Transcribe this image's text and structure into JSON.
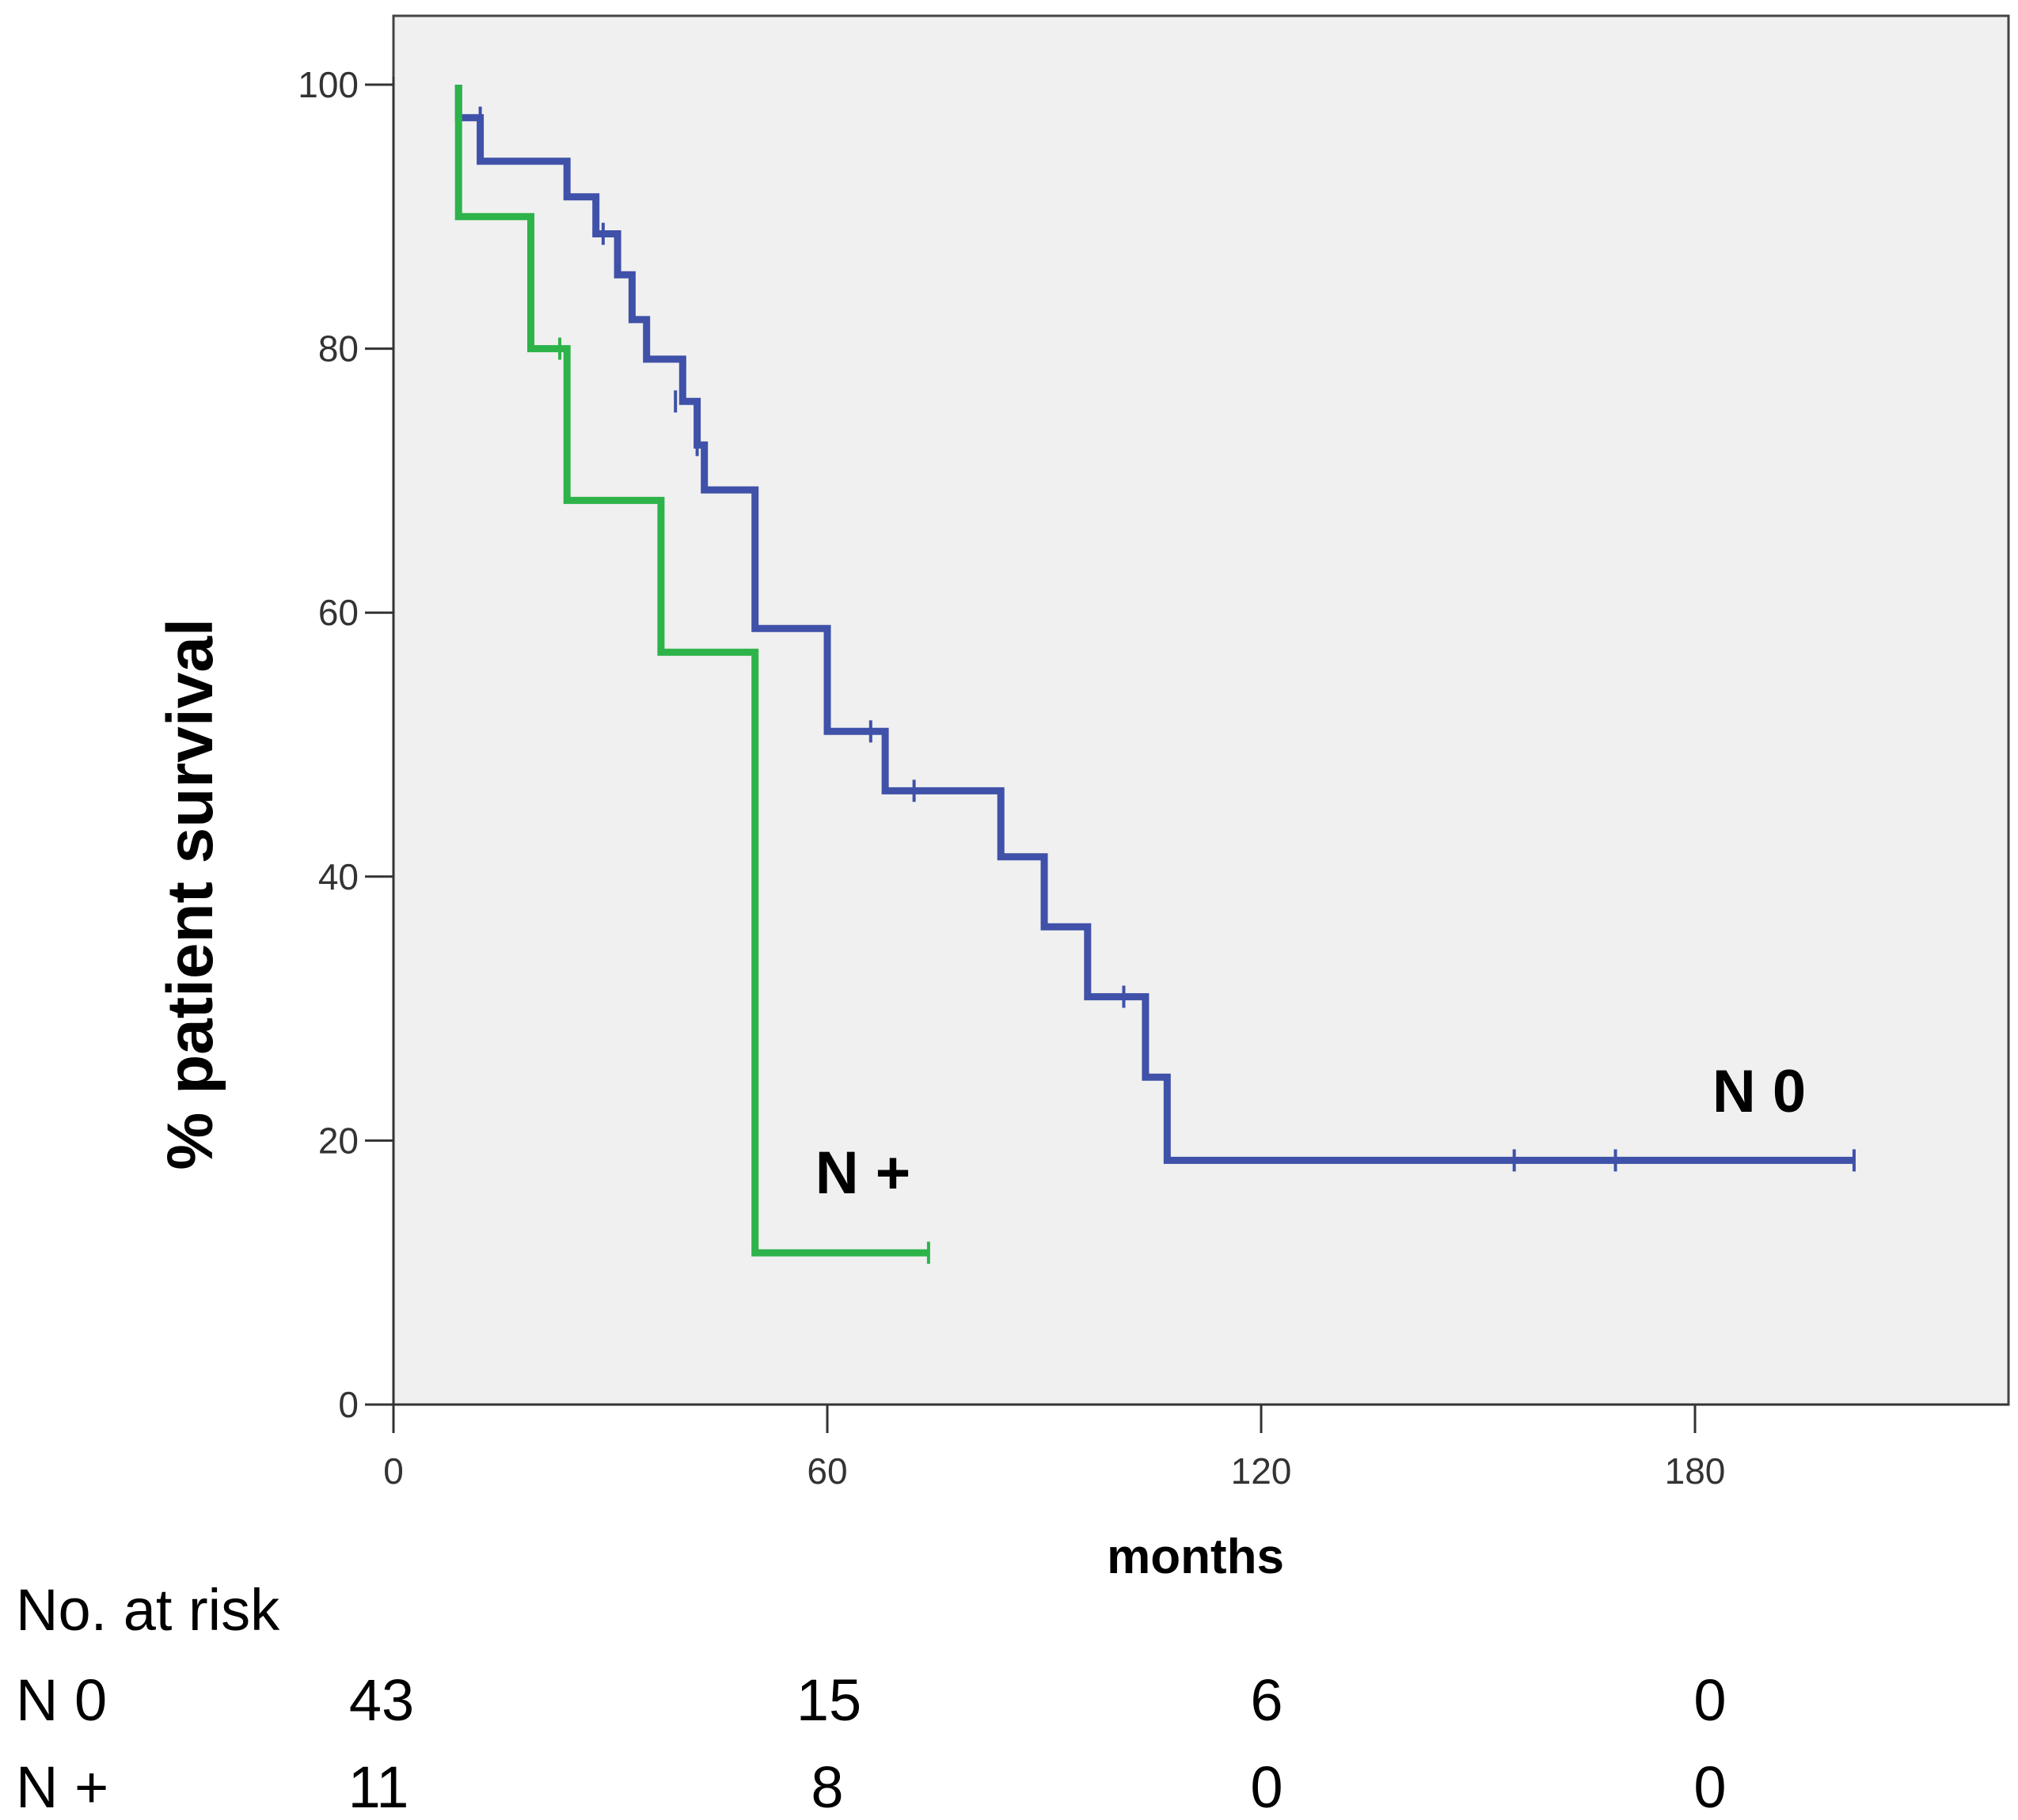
{
  "chart_data": {
    "type": "line",
    "subtype": "kaplan-meier step",
    "xlabel": "months",
    "ylabel": "% patient survival",
    "xlim": [
      0,
      220
    ],
    "ylim": [
      0,
      105
    ],
    "xticks": [
      "0",
      "60",
      "120",
      "180"
    ],
    "yticks": [
      "0",
      "20",
      "40",
      "60",
      "80",
      "100"
    ],
    "plot_background": "#f0f0f0",
    "series": [
      {
        "name": "N 0",
        "label": "N 0",
        "color": "#3f51a8",
        "steps": [
          [
            9,
            100
          ],
          [
            9,
            97.5
          ],
          [
            12,
            97.5
          ],
          [
            12,
            94.2
          ],
          [
            24,
            94.2
          ],
          [
            24,
            91.5
          ],
          [
            28,
            91.5
          ],
          [
            28,
            88.7
          ],
          [
            31,
            88.7
          ],
          [
            31,
            85.6
          ],
          [
            33,
            85.6
          ],
          [
            33,
            82.2
          ],
          [
            35,
            82.2
          ],
          [
            35,
            79.2
          ],
          [
            40,
            79.2
          ],
          [
            40,
            76
          ],
          [
            42,
            76
          ],
          [
            42,
            72.7
          ],
          [
            43,
            72.7
          ],
          [
            43,
            69.3
          ],
          [
            50,
            69.3
          ],
          [
            50,
            58.8
          ],
          [
            60,
            58.8
          ],
          [
            60,
            51
          ],
          [
            68,
            51
          ],
          [
            68,
            46.5
          ],
          [
            84,
            46.5
          ],
          [
            84,
            41.5
          ],
          [
            90,
            41.5
          ],
          [
            90,
            36.2
          ],
          [
            96,
            36.2
          ],
          [
            96,
            30.9
          ],
          [
            104,
            30.9
          ],
          [
            104,
            24.8
          ],
          [
            107,
            24.8
          ],
          [
            107,
            18.5
          ],
          [
            202,
            18.5
          ]
        ],
        "censored": [
          [
            12,
            97.5
          ],
          [
            29,
            88.7
          ],
          [
            39,
            76
          ],
          [
            42,
            72.7
          ],
          [
            66,
            51
          ],
          [
            72,
            46.5
          ],
          [
            101,
            30.9
          ],
          [
            155,
            18.5
          ],
          [
            169,
            18.5
          ],
          [
            202,
            18.5
          ]
        ]
      },
      {
        "name": "N +",
        "label": "N +",
        "color": "#2db34a",
        "steps": [
          [
            9,
            100
          ],
          [
            9,
            90
          ],
          [
            19,
            90
          ],
          [
            19,
            80
          ],
          [
            24,
            80
          ],
          [
            24,
            68.5
          ],
          [
            37,
            68.5
          ],
          [
            37,
            57
          ],
          [
            50,
            57
          ],
          [
            50,
            11.5
          ],
          [
            74,
            11.5
          ]
        ],
        "censored": [
          [
            23,
            80
          ],
          [
            74,
            11.5
          ]
        ]
      }
    ]
  },
  "risk_table": {
    "heading": "No. at risk",
    "columns": [
      "0",
      "60",
      "120",
      "180"
    ],
    "rows": [
      {
        "label": "N 0",
        "values": [
          "43",
          "15",
          "6",
          "0"
        ]
      },
      {
        "label": "N +",
        "values": [
          "11",
          "8",
          "0",
          "0"
        ]
      }
    ]
  }
}
